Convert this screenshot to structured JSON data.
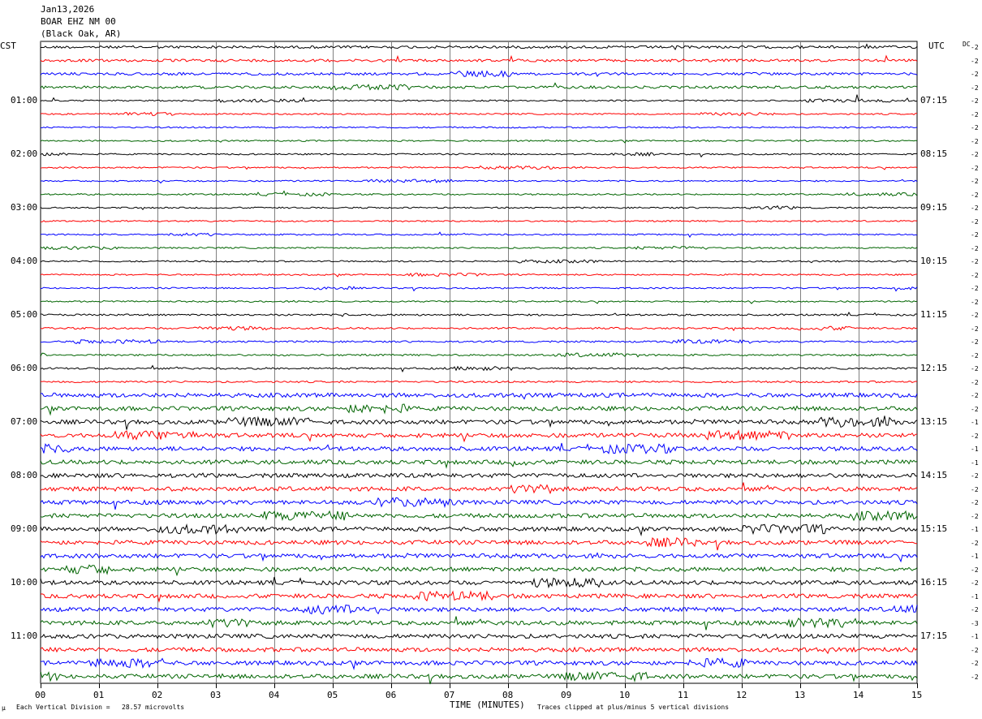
{
  "header": {
    "date": "Jan13,2026",
    "station": "BOAR EHZ NM 00",
    "location": "(Black Oak, AR)"
  },
  "left_axis_title": "CST",
  "right_axis_title": "UTC",
  "dc_label": "DC",
  "left_hour_labels": [
    "01:00",
    "02:00",
    "03:00",
    "04:00",
    "05:00",
    "06:00",
    "07:00",
    "08:00",
    "09:00",
    "10:00",
    "11:00"
  ],
  "right_hour_labels": [
    "07:15",
    "08:15",
    "09:15",
    "10:15",
    "11:15",
    "12:15",
    "13:15",
    "14:15",
    "15:15",
    "16:15",
    "17:15"
  ],
  "footer": {
    "scale_note": "Each Vertical Division =   28.57 microvolts",
    "clip_note": "Traces clipped at plus/minus 5 vertical divisions",
    "mark": "µ"
  },
  "chart_data": {
    "type": "line",
    "title": "",
    "xlabel": "TIME (MINUTES)",
    "ylabel": "",
    "xlim": [
      0,
      15
    ],
    "x_tick_labels": [
      "00",
      "01",
      "02",
      "03",
      "04",
      "05",
      "06",
      "07",
      "08",
      "09",
      "10",
      "11",
      "12",
      "13",
      "14",
      "15"
    ],
    "trace_count": 48,
    "trace_colors": [
      "#000000",
      "#ff0000",
      "#0000ff",
      "#006400"
    ],
    "grid": true,
    "dc_offsets": [
      "-2",
      "-2",
      "-2",
      "-2",
      "-2",
      "-2",
      "-2",
      "-2",
      "-2",
      "-2",
      "-2",
      "-2",
      "-2",
      "-2",
      "-2",
      "-2",
      "-2",
      "-2",
      "-2",
      "-2",
      "-2",
      "-2",
      "-2",
      "-2",
      "-2",
      "-2",
      "-2",
      "-2",
      "-1",
      "-2",
      "-1",
      "-1",
      "-2",
      "-2",
      "-2",
      "-2",
      "-1",
      "-2",
      "-1",
      "-2",
      "-2",
      "-1",
      "-2",
      "-3",
      "-1",
      "-2",
      "-2",
      "-2"
    ]
  }
}
